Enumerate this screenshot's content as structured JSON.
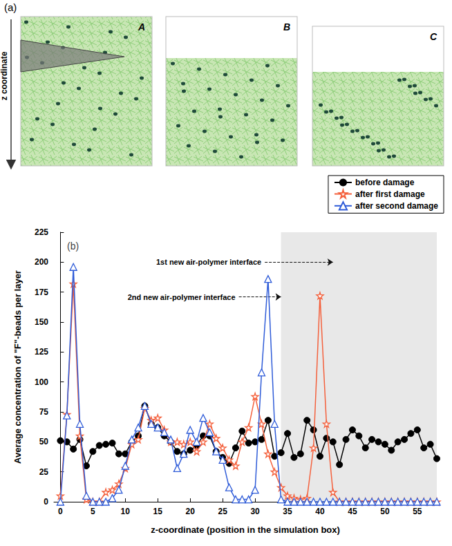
{
  "panel_a": {
    "label": "(a)",
    "axis_label": "z coordinate",
    "boxes": [
      "A",
      "B",
      "C"
    ]
  },
  "chart_data": {
    "type": "line",
    "panel_label": "(b)",
    "x_label": "z-coordinate (position in the simulation box)",
    "y_label": "Average concentration of \"F\"-beads per layer",
    "x": [
      0,
      1,
      2,
      3,
      4,
      5,
      6,
      7,
      8,
      9,
      10,
      11,
      12,
      13,
      14,
      15,
      16,
      17,
      18,
      19,
      20,
      21,
      22,
      23,
      24,
      25,
      26,
      27,
      28,
      29,
      30,
      31,
      32,
      33,
      34,
      35,
      36,
      37,
      38,
      39,
      40,
      41,
      42,
      43,
      44,
      45,
      46,
      47,
      48,
      49,
      50,
      51,
      52,
      53,
      54,
      55,
      56,
      57,
      58
    ],
    "series": [
      {
        "name": "before damage",
        "color": "#000000",
        "marker": "circle",
        "values": [
          51,
          50,
          44,
          52,
          30,
          42,
          47,
          48,
          49,
          40,
          40,
          50,
          55,
          80,
          65,
          62,
          55,
          50,
          42,
          40,
          43,
          47,
          55,
          55,
          42,
          37,
          32,
          45,
          59,
          49,
          50,
          52,
          68,
          38,
          41,
          57,
          37,
          40,
          68,
          60,
          38,
          53,
          50,
          31,
          52,
          60,
          55,
          45,
          52,
          50,
          48,
          43,
          50,
          52,
          57,
          60,
          45,
          48,
          36
        ]
      },
      {
        "name": "after first damage",
        "color": "#f4603c",
        "marker": "star",
        "values": [
          5,
          73,
          182,
          55,
          2,
          0,
          0,
          8,
          10,
          15,
          28,
          48,
          52,
          78,
          68,
          70,
          60,
          50,
          50,
          48,
          50,
          42,
          50,
          65,
          53,
          45,
          35,
          30,
          50,
          62,
          88,
          65,
          40,
          25,
          12,
          5,
          3,
          2,
          3,
          45,
          172,
          65,
          8,
          0,
          0,
          0,
          0,
          0,
          0,
          0,
          0,
          0,
          0,
          0,
          0,
          0,
          0,
          0,
          0
        ]
      },
      {
        "name": "after second damage",
        "color": "#2e5bd8",
        "marker": "triangle",
        "values": [
          0,
          72,
          196,
          65,
          5,
          0,
          0,
          0,
          3,
          10,
          30,
          52,
          62,
          80,
          65,
          62,
          58,
          52,
          28,
          40,
          60,
          50,
          70,
          58,
          42,
          35,
          12,
          2,
          2,
          2,
          10,
          108,
          186,
          65,
          2,
          0,
          0,
          0,
          0,
          0,
          0,
          0,
          0,
          0,
          0,
          0,
          0,
          0,
          0,
          0,
          0,
          0,
          0,
          0,
          0,
          0,
          0,
          0,
          0
        ]
      }
    ],
    "xlim": [
      -1,
      58
    ],
    "xticks": [
      0,
      5,
      10,
      15,
      20,
      25,
      30,
      35,
      40,
      45,
      50,
      55
    ],
    "ylim": [
      0,
      225
    ],
    "yticks": [
      0,
      25,
      50,
      75,
      100,
      125,
      150,
      175,
      200,
      225
    ],
    "grid": false,
    "legend": "top-right",
    "shaded_x": [
      34,
      58
    ],
    "annotations": [
      {
        "text": "1st new air-polymer interface",
        "x": 31.5,
        "x_end": 42,
        "y": 200
      },
      {
        "text": "2nd new air-polymer interface",
        "x": 27.5,
        "x_end": 34,
        "y": 171
      }
    ]
  }
}
